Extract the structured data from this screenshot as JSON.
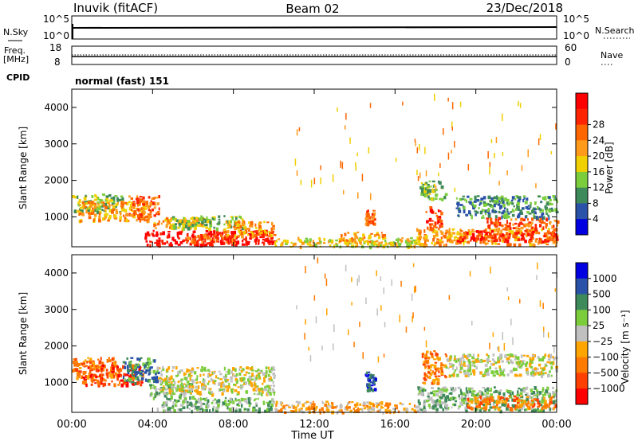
{
  "header": {
    "site": "Inuvik (fitACF)",
    "beam": "Beam 02",
    "date": "23/Dec/2018"
  },
  "status_panels": {
    "nsky": {
      "label": "N.Sky",
      "ticks": [
        "10^5",
        "10^0"
      ]
    },
    "nsearch": {
      "label": "N.Search",
      "ticks": [
        "10^5",
        "10^0"
      ]
    },
    "freq": {
      "label": "Freq.",
      "unit": "[MHz]",
      "ticks": [
        "18",
        "8"
      ]
    },
    "nave": {
      "label": "Nave",
      "ticks": [
        "60",
        "0"
      ]
    },
    "cpid": {
      "label": "CPID",
      "value": "normal (fast) 151"
    }
  },
  "colors": {
    "power": [
      "#0000e0",
      "#2a52a8",
      "#3f8a5a",
      "#7ccd3c",
      "#f0d000",
      "#ff9a1a",
      "#ff6600",
      "#ff2400",
      "#ff0000"
    ],
    "velocity": [
      "#0000e0",
      "#2a52a8",
      "#3f8a5a",
      "#7ccd3c",
      "#c0c0c0",
      "#ffa500",
      "#ff7a00",
      "#ff4000",
      "#ff0000"
    ],
    "ground_scatter": "#bcbcbc"
  },
  "chart_data": [
    {
      "type": "heatmap",
      "name": "power",
      "ylabel": "Slant Range [km]",
      "yticks": [
        1000,
        2000,
        3000,
        4000
      ],
      "ylim": [
        180,
        4500
      ],
      "xlim_hours": [
        0,
        24
      ],
      "colorbar": {
        "label": "Power [dB]",
        "ticks": [
          "4",
          "8",
          "12",
          "16",
          "20",
          "24",
          "28"
        ],
        "range": [
          0,
          32
        ]
      },
      "regions": [
        {
          "t0": 0.0,
          "t1": 2.5,
          "r0": 1150,
          "r1": 1650,
          "level": 3
        },
        {
          "t0": 0.3,
          "t1": 3.8,
          "r0": 900,
          "r1": 1450,
          "level": 5
        },
        {
          "t0": 2.8,
          "t1": 4.3,
          "r0": 1000,
          "r1": 1600,
          "level": 6
        },
        {
          "t0": 4.0,
          "t1": 6.5,
          "r0": 700,
          "r1": 1000,
          "level": 5
        },
        {
          "t0": 3.6,
          "t1": 10.0,
          "r0": 250,
          "r1": 650,
          "level": 8
        },
        {
          "t0": 5.5,
          "t1": 8.2,
          "r0": 300,
          "r1": 550,
          "level": 6
        },
        {
          "t0": 4.8,
          "t1": 8.5,
          "r0": 700,
          "r1": 1050,
          "level": 3
        },
        {
          "t0": 7.5,
          "t1": 10.0,
          "r0": 500,
          "r1": 900,
          "level": 5
        },
        {
          "t0": 10.0,
          "t1": 17.0,
          "r0": 200,
          "r1": 450,
          "level": 4
        },
        {
          "t0": 14.5,
          "t1": 15.0,
          "r0": 800,
          "r1": 1200,
          "level": 6
        },
        {
          "t0": 13.2,
          "t1": 15.5,
          "r0": 300,
          "r1": 600,
          "level": 5
        },
        {
          "t0": 17.2,
          "t1": 18.5,
          "r0": 1500,
          "r1": 2000,
          "level": 3
        },
        {
          "t0": 17.5,
          "t1": 18.3,
          "r0": 700,
          "r1": 1300,
          "level": 7
        },
        {
          "t0": 17.0,
          "t1": 24.0,
          "r0": 250,
          "r1": 700,
          "level": 5
        },
        {
          "t0": 19.0,
          "t1": 24.0,
          "r0": 350,
          "r1": 650,
          "level": 7
        },
        {
          "t0": 20.5,
          "t1": 24.0,
          "r0": 700,
          "r1": 1000,
          "level": 6
        },
        {
          "t0": 19.0,
          "t1": 24.0,
          "r0": 1000,
          "r1": 1600,
          "level": 2
        },
        {
          "t0": 11.0,
          "t1": 24.0,
          "r0": 1600,
          "r1": 4500,
          "level": 5
        }
      ]
    },
    {
      "type": "heatmap",
      "name": "velocity",
      "ylabel": "Slant Range [km]",
      "yticks": [
        1000,
        2000,
        3000,
        4000
      ],
      "ylim": [
        180,
        4500
      ],
      "xlim_hours": [
        0,
        24
      ],
      "xticks": [
        "00:00",
        "04:00",
        "08:00",
        "12:00",
        "16:00",
        "20:00",
        "00:00"
      ],
      "xlabel": "Time UT",
      "colorbar": {
        "label": "Velocity [m s⁻¹]",
        "ticks": [
          "1000",
          "500",
          "100",
          "25",
          "−25",
          "−100",
          "−500",
          "−1000"
        ]
      },
      "regions": [
        {
          "t0": 0.0,
          "t1": 2.2,
          "r0": 1150,
          "r1": 1700,
          "level": 6
        },
        {
          "t0": 0.5,
          "t1": 3.5,
          "r0": 950,
          "r1": 1500,
          "level": 7
        },
        {
          "t0": 2.5,
          "t1": 4.3,
          "r0": 1000,
          "r1": 1700,
          "level": 2
        },
        {
          "t0": 3.8,
          "t1": 6.0,
          "r0": 600,
          "r1": 1000,
          "level": 3
        },
        {
          "t0": 4.2,
          "t1": 10.0,
          "r0": 700,
          "r1": 1450,
          "level": 4
        },
        {
          "t0": 4.0,
          "t1": 10.0,
          "r0": 250,
          "r1": 600,
          "level": 3
        },
        {
          "t0": 10.0,
          "t1": 17.0,
          "r0": 200,
          "r1": 500,
          "level": 5
        },
        {
          "t0": 14.5,
          "t1": 15.0,
          "r0": 800,
          "r1": 1300,
          "level": 1
        },
        {
          "t0": 17.3,
          "t1": 18.5,
          "r0": 1000,
          "r1": 1900,
          "level": 6
        },
        {
          "t0": 18.5,
          "t1": 24.0,
          "r0": 1200,
          "r1": 1800,
          "level": 4
        },
        {
          "t0": 17.0,
          "t1": 24.0,
          "r0": 250,
          "r1": 900,
          "level": 3
        },
        {
          "t0": 19.5,
          "t1": 24.0,
          "r0": 300,
          "r1": 650,
          "level": 6
        },
        {
          "t0": 11.0,
          "t1": 24.0,
          "r0": 1600,
          "r1": 4500,
          "level": 5
        }
      ]
    }
  ]
}
